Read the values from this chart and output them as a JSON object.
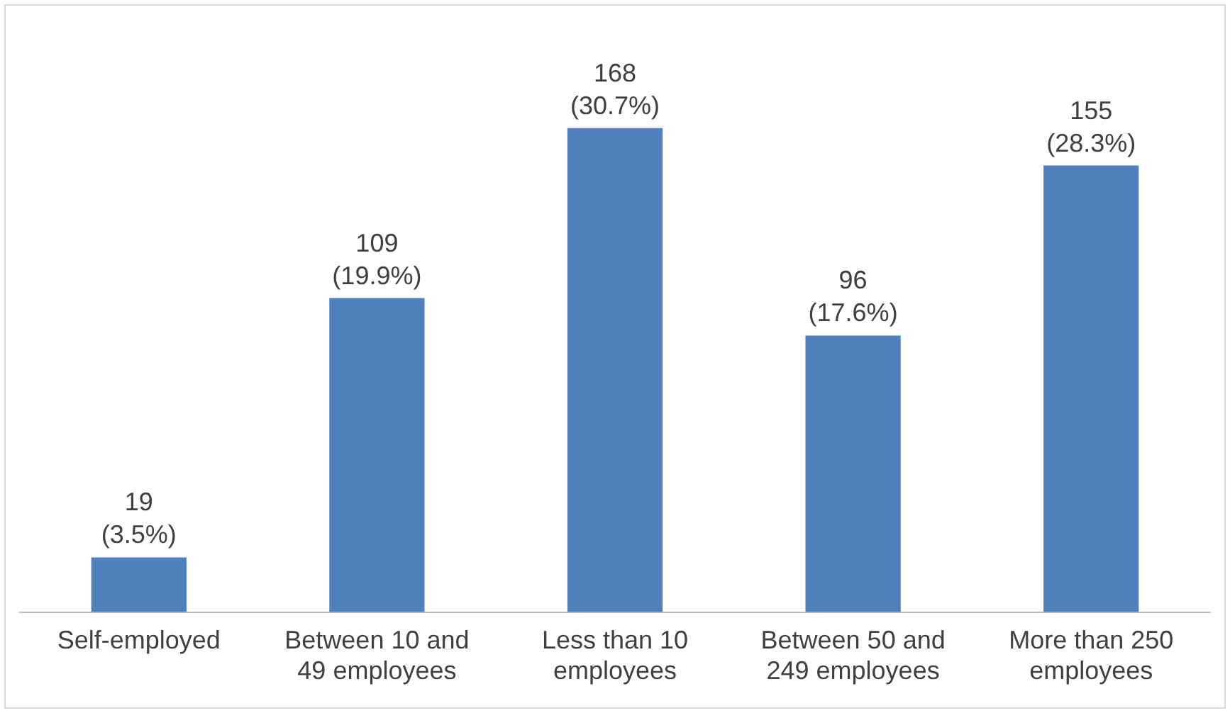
{
  "chart_data": {
    "type": "bar",
    "categories": [
      "Self-employed",
      "Between 10 and 49 employees",
      "Less than 10 employees",
      "Between 50 and 249 employees",
      "More than 250 employees"
    ],
    "values": [
      19,
      109,
      168,
      96,
      155
    ],
    "color": "#4f81bd",
    "value_labels": [
      "19 (3.5%)",
      "109 (19.9%)",
      "168 (30.7%)",
      "96 (17.6%)",
      "155 (28.3%)"
    ],
    "grid": false,
    "legend": false
  }
}
